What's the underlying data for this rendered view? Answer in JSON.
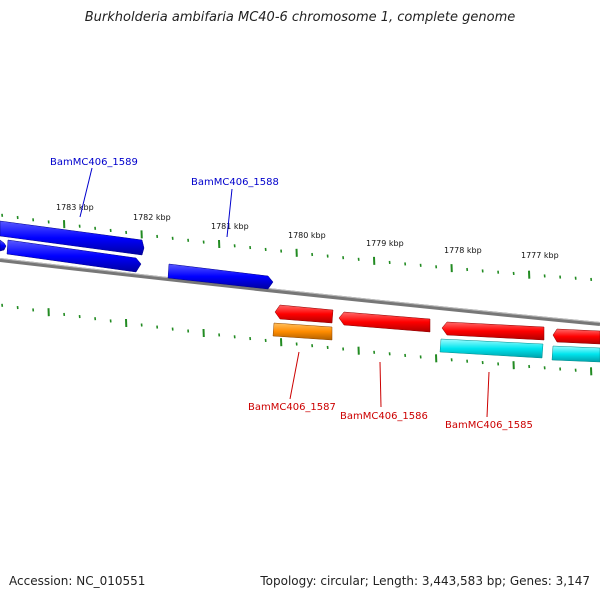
{
  "title": "Burkholderia ambifaria MC40-6 chromosome 1, complete genome",
  "footer": {
    "accession": "Accession: NC_010551",
    "summary": "Topology: circular; Length: 3,443,583 bp; Genes: 3,147"
  },
  "scale_labels": [
    "1783 kbp",
    "1782 kbp",
    "1781 kbp",
    "1780 kbp",
    "1779 kbp",
    "1778 kbp",
    "1777 kbp"
  ],
  "genes": [
    {
      "name": "BamMC406_1589",
      "strand": "forward",
      "color": "#0000cc"
    },
    {
      "name": "BamMC406_1588",
      "strand": "forward",
      "color": "#0000cc"
    },
    {
      "name": "BamMC406_1587",
      "strand": "reverse",
      "color": "#cc0000"
    },
    {
      "name": "BamMC406_1586",
      "strand": "reverse",
      "color": "#cc0000"
    },
    {
      "name": "BamMC406_1585",
      "strand": "reverse",
      "color": "#cc0000"
    }
  ],
  "colors": {
    "forward_cds": "#0000ff",
    "reverse_cds": "#ff0000",
    "rna": "#ff8c00",
    "feature": "#00e5ee",
    "backbone": "#888888",
    "ticks": "#228b22"
  }
}
